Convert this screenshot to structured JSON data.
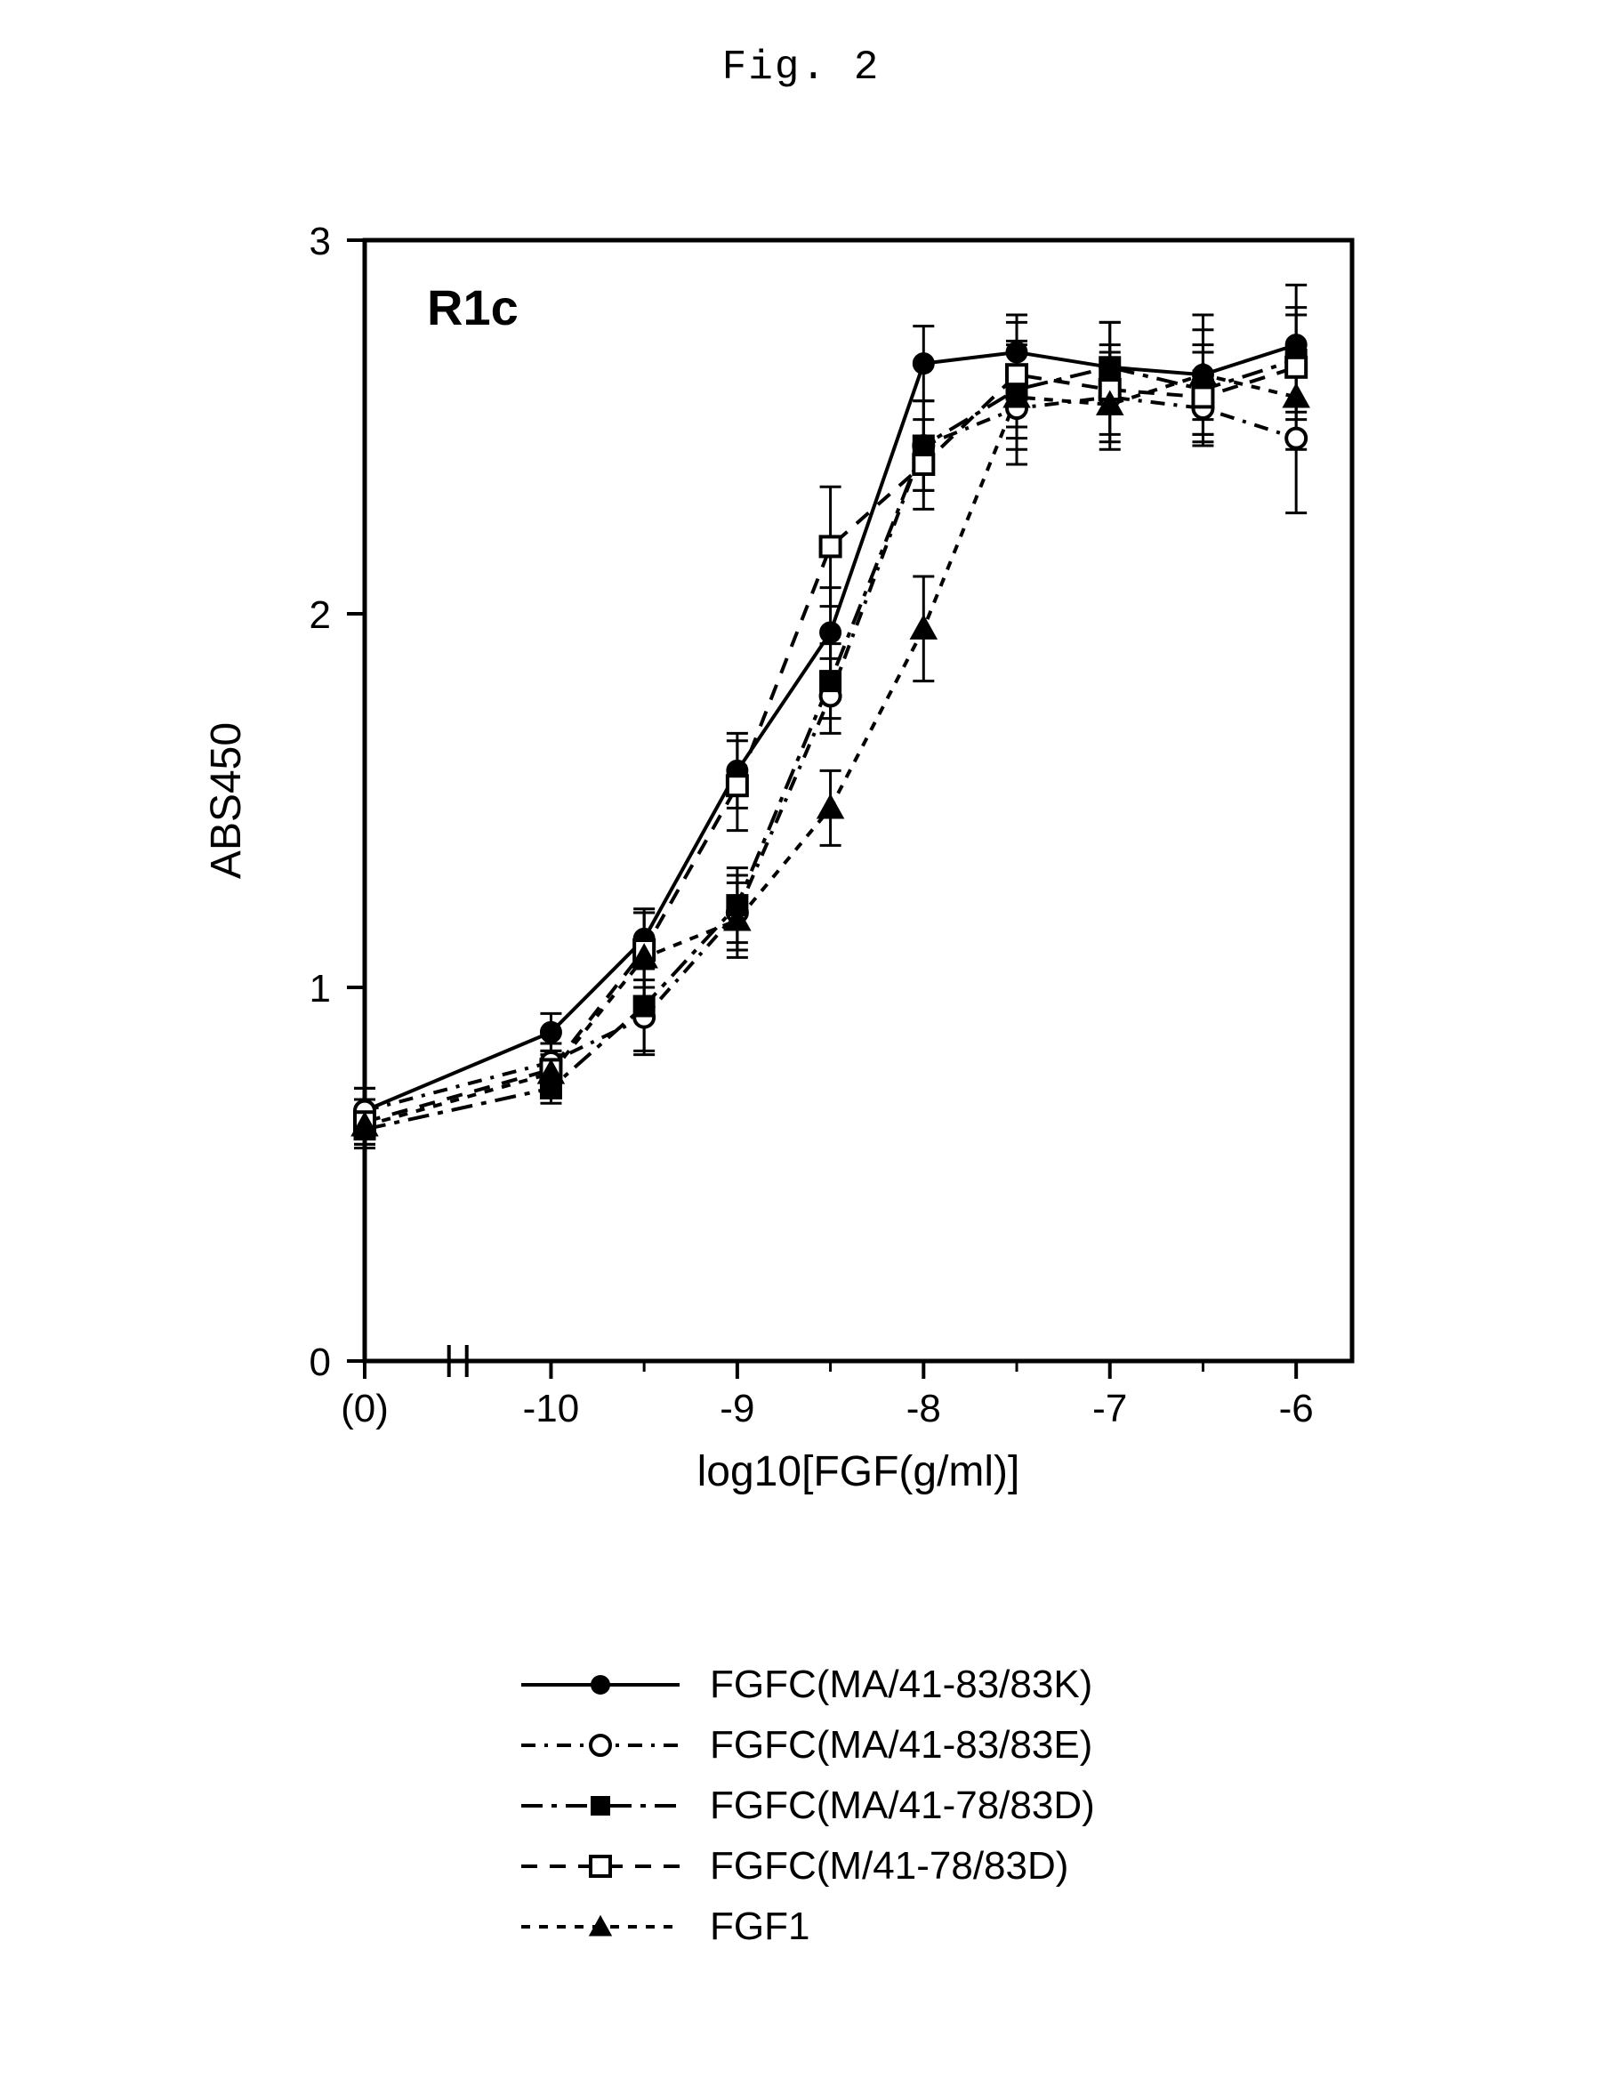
{
  "figure_label": "Fig. 2",
  "chart": {
    "type": "line-scatter",
    "panel_label": "R1c",
    "panel_label_fontsize": 56,
    "panel_label_font": "Arial",
    "xlabel": "log10[FGF(g/ml)]",
    "ylabel": "ABS450",
    "axis_label_fontsize": 48,
    "tick_fontsize": 44,
    "axis_font": "Arial",
    "background_color": "#ffffff",
    "axis_color": "#000000",
    "line_width": 4,
    "marker_size": 22,
    "error_bar_width": 3,
    "error_cap_half": 12,
    "plot_x_origin_value": -11.0,
    "x_ticks": [
      {
        "pos": -11.0,
        "label": "(0)"
      },
      {
        "pos": -10.0,
        "label": "-10"
      },
      {
        "pos": -9.0,
        "label": "-9"
      },
      {
        "pos": -8.0,
        "label": "-8"
      },
      {
        "pos": -7.0,
        "label": "-7"
      },
      {
        "pos": -6.0,
        "label": "-6"
      }
    ],
    "axis_break_x": -10.5,
    "x_domain": [
      -11.0,
      -5.7
    ],
    "y_domain": [
      0,
      3
    ],
    "y_ticks": [
      0,
      1,
      2,
      3
    ],
    "series": [
      {
        "id": "s1",
        "label": "FGFC(MA/41-83/83K)",
        "marker": "circle-filled",
        "dash": "solid",
        "color": "#000000",
        "x": [
          -11.0,
          -10.0,
          -9.5,
          -9.0,
          -8.5,
          -8.0,
          -7.5,
          -7.0,
          -6.5,
          -6.0
        ],
        "y": [
          0.67,
          0.88,
          1.13,
          1.58,
          1.95,
          2.67,
          2.7,
          2.66,
          2.64,
          2.72
        ],
        "err": [
          0.06,
          0.05,
          0.08,
          0.1,
          0.12,
          0.1,
          0.1,
          0.12,
          0.12,
          0.16
        ]
      },
      {
        "id": "s2",
        "label": "FGFC(MA/41-83/83E)",
        "marker": "circle-open",
        "dash": "dashdot",
        "color": "#000000",
        "x": [
          -11.0,
          -10.0,
          -9.5,
          -9.0,
          -8.5,
          -8.0,
          -7.5,
          -7.0,
          -6.5,
          -6.0
        ],
        "y": [
          0.67,
          0.8,
          0.92,
          1.2,
          1.78,
          2.45,
          2.55,
          2.58,
          2.55,
          2.47
        ],
        "err": [
          0.06,
          0.05,
          0.1,
          0.1,
          0.1,
          0.12,
          0.15,
          0.12,
          0.1,
          0.2
        ]
      },
      {
        "id": "s3",
        "label": "FGFC(MA/41-78/83D)",
        "marker": "square-filled",
        "dash": "longdashdot",
        "color": "#000000",
        "x": [
          -11.0,
          -10.0,
          -9.5,
          -9.0,
          -8.5,
          -8.0,
          -7.5,
          -7.0,
          -6.5,
          -6.0
        ],
        "y": [
          0.62,
          0.73,
          0.95,
          1.22,
          1.82,
          2.45,
          2.6,
          2.66,
          2.6,
          2.68
        ],
        "err": [
          0.05,
          0.04,
          0.12,
          0.1,
          0.1,
          0.12,
          0.13,
          0.12,
          0.12,
          0.14
        ]
      },
      {
        "id": "s4",
        "label": "FGFC(M/41-78/83D)",
        "marker": "square-open",
        "dash": "dashed",
        "color": "#000000",
        "x": [
          -11.0,
          -10.0,
          -9.5,
          -9.0,
          -8.5,
          -8.0,
          -7.5,
          -7.0,
          -6.5,
          -6.0
        ],
        "y": [
          0.64,
          0.78,
          1.1,
          1.54,
          2.18,
          2.4,
          2.64,
          2.6,
          2.58,
          2.66
        ],
        "err": [
          0.06,
          0.05,
          0.1,
          0.12,
          0.16,
          0.12,
          0.14,
          0.12,
          0.12,
          0.14
        ]
      },
      {
        "id": "s5",
        "label": "FGF1",
        "marker": "triangle-filled",
        "dash": "shortdash",
        "color": "#000000",
        "x": [
          -11.0,
          -10.0,
          -9.5,
          -9.0,
          -8.5,
          -8.0,
          -7.5,
          -7.0,
          -6.5,
          -6.0
        ],
        "y": [
          0.63,
          0.77,
          1.08,
          1.18,
          1.48,
          1.96,
          2.58,
          2.56,
          2.64,
          2.58
        ],
        "err": [
          0.05,
          0.05,
          0.12,
          0.1,
          0.1,
          0.14,
          0.14,
          0.12,
          0.16,
          0.14
        ]
      }
    ]
  }
}
